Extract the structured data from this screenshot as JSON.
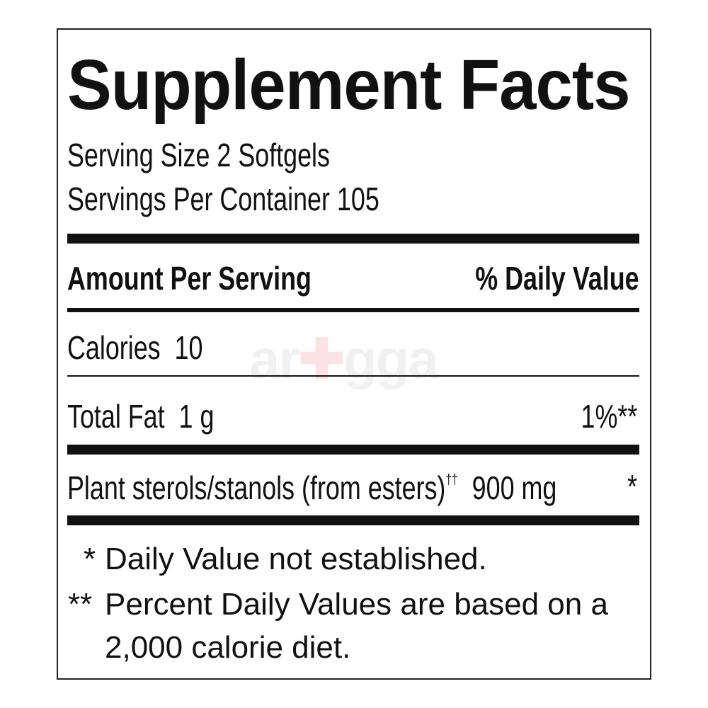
{
  "label": {
    "title": "Supplement Facts",
    "serving_size": "Serving Size 2 Softgels",
    "servings_per_container": "Servings Per Container 105",
    "header_left": "Amount Per Serving",
    "header_right": "% Daily Value",
    "rows": [
      {
        "name": "Calories",
        "amount": "10",
        "dv": ""
      },
      {
        "name": "Total Fat",
        "amount": "1 g",
        "dv": "1%**"
      },
      {
        "name": "Plant sterols/stanols (from esters)",
        "mark": "††",
        "amount": "900 mg",
        "dv": "*"
      }
    ],
    "footnotes": [
      {
        "mark": "*",
        "text": "Daily Value not established."
      },
      {
        "mark": "**",
        "text": "Percent Daily Values are based on a",
        "text2": "2,000 calorie diet."
      }
    ]
  },
  "watermark": {
    "text_a": "ar",
    "text_b": "gga",
    "accent": "#e53935"
  }
}
